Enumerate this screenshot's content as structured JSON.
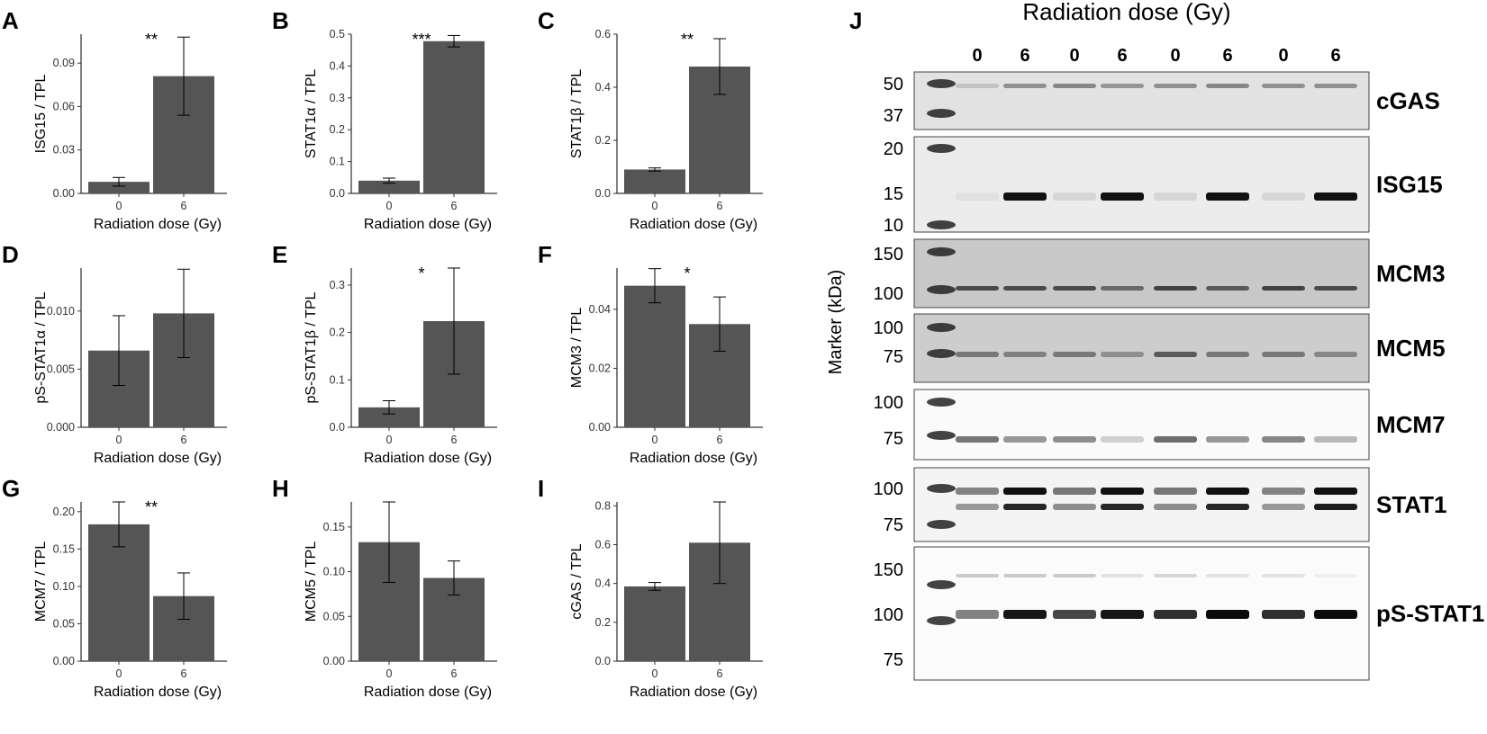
{
  "chart_data": [
    {
      "id": "A",
      "type": "bar",
      "panel_label": "A",
      "categories": [
        "0",
        "6"
      ],
      "values": [
        0.008,
        0.081
      ],
      "error": [
        0.003,
        0.027
      ],
      "ylabel": "ISG15 / TPL",
      "xlabel": "Radiation dose (Gy)",
      "ylim": [
        0,
        0.11
      ],
      "yticks": [
        0.0,
        0.03,
        0.06,
        0.09
      ],
      "ytick_labels": [
        "0.00",
        "0.03",
        "0.06",
        "0.09"
      ],
      "significance": "**",
      "bar_color": "#555555"
    },
    {
      "id": "B",
      "type": "bar",
      "panel_label": "B",
      "categories": [
        "0",
        "6"
      ],
      "values": [
        0.04,
        0.478
      ],
      "error": [
        0.008,
        0.018
      ],
      "ylabel": "STAT1α / TPL",
      "xlabel": "Radiation dose (Gy)",
      "ylim": [
        0,
        0.5
      ],
      "yticks": [
        0.0,
        0.1,
        0.2,
        0.3,
        0.4,
        0.5
      ],
      "ytick_labels": [
        "0.0",
        "0.1",
        "0.2",
        "0.3",
        "0.4",
        "0.5"
      ],
      "significance": "***",
      "bar_color": "#555555"
    },
    {
      "id": "C",
      "type": "bar",
      "panel_label": "C",
      "categories": [
        "0",
        "6"
      ],
      "values": [
        0.09,
        0.478
      ],
      "error": [
        0.006,
        0.105
      ],
      "ylabel": "STAT1β / TPL",
      "xlabel": "Radiation dose (Gy)",
      "ylim": [
        0,
        0.6
      ],
      "yticks": [
        0.0,
        0.2,
        0.4,
        0.6
      ],
      "ytick_labels": [
        "0.0",
        "0.2",
        "0.4",
        "0.6"
      ],
      "significance": "**",
      "bar_color": "#555555"
    },
    {
      "id": "D",
      "type": "bar",
      "panel_label": "D",
      "categories": [
        "0",
        "6"
      ],
      "values": [
        0.0066,
        0.0098
      ],
      "error": [
        0.003,
        0.0038
      ],
      "ylabel": "pS-STAT1α / TPL",
      "xlabel": "Radiation dose (Gy)",
      "ylim": [
        0,
        0.0137
      ],
      "yticks": [
        0.0,
        0.005,
        0.01
      ],
      "ytick_labels": [
        "0.000",
        "0.005",
        "0.010"
      ],
      "significance": "",
      "bar_color": "#555555"
    },
    {
      "id": "E",
      "type": "bar",
      "panel_label": "E",
      "categories": [
        "0",
        "6"
      ],
      "values": [
        0.042,
        0.224
      ],
      "error": [
        0.014,
        0.112
      ],
      "ylabel": "pS-STAT1β / TPL",
      "xlabel": "Radiation dose (Gy)",
      "ylim": [
        0,
        0.336
      ],
      "yticks": [
        0.0,
        0.1,
        0.2,
        0.3
      ],
      "ytick_labels": [
        "0.0",
        "0.1",
        "0.2",
        "0.3"
      ],
      "significance": "*",
      "bar_color": "#555555"
    },
    {
      "id": "F",
      "type": "bar",
      "panel_label": "F",
      "categories": [
        "0",
        "6"
      ],
      "values": [
        0.048,
        0.035
      ],
      "error": [
        0.0058,
        0.0092
      ],
      "ylabel": "MCM3 / TPL",
      "xlabel": "Radiation dose (Gy)",
      "ylim": [
        0,
        0.054
      ],
      "yticks": [
        0.0,
        0.02,
        0.04
      ],
      "ytick_labels": [
        "0.00",
        "0.02",
        "0.04"
      ],
      "significance": "*",
      "bar_color": "#555555"
    },
    {
      "id": "G",
      "type": "bar",
      "panel_label": "G",
      "categories": [
        "0",
        "6"
      ],
      "values": [
        0.183,
        0.087
      ],
      "error": [
        0.03,
        0.031
      ],
      "ylabel": "MCM7 / TPL",
      "xlabel": "Radiation dose (Gy)",
      "ylim": [
        0,
        0.213
      ],
      "yticks": [
        0.0,
        0.05,
        0.1,
        0.15,
        0.2
      ],
      "ytick_labels": [
        "0.00",
        "0.05",
        "0.10",
        "0.15",
        "0.20"
      ],
      "significance": "**",
      "bar_color": "#555555"
    },
    {
      "id": "H",
      "type": "bar",
      "panel_label": "H",
      "categories": [
        "0",
        "6"
      ],
      "values": [
        0.133,
        0.093
      ],
      "error": [
        0.045,
        0.019
      ],
      "ylabel": "MCM5 / TPL",
      "xlabel": "Radiation dose (Gy)",
      "ylim": [
        0,
        0.178
      ],
      "yticks": [
        0.0,
        0.05,
        0.1,
        0.15
      ],
      "ytick_labels": [
        "0.00",
        "0.05",
        "0.10",
        "0.15"
      ],
      "significance": "",
      "bar_color": "#555555"
    },
    {
      "id": "I",
      "type": "bar",
      "panel_label": "I",
      "categories": [
        "0",
        "6"
      ],
      "values": [
        0.385,
        0.61
      ],
      "error": [
        0.02,
        0.21
      ],
      "ylabel": "cGAS / TPL",
      "xlabel": "Radiation dose (Gy)",
      "ylim": [
        0,
        0.82
      ],
      "yticks": [
        0.0,
        0.2,
        0.4,
        0.6,
        0.8
      ],
      "ytick_labels": [
        "0.0",
        "0.2",
        "0.4",
        "0.6",
        "0.8"
      ],
      "significance": "",
      "bar_color": "#555555"
    }
  ],
  "blot": {
    "panel_label": "J",
    "title": "Radiation dose (Gy)",
    "lanes": [
      "0",
      "6",
      "0",
      "6",
      "0",
      "6",
      "0",
      "6"
    ],
    "marker_axis_label": "Marker (kDa)",
    "strips": [
      {
        "id": "cgas",
        "protein": "cGAS",
        "markers": [
          "50",
          "37"
        ],
        "background": "#e2e2e2",
        "band_color": "#4a4a4a"
      },
      {
        "id": "isg15",
        "protein": "ISG15",
        "markers": [
          "20",
          "15",
          "10"
        ],
        "background": "#ececec",
        "band_color": "#111111"
      },
      {
        "id": "mcm3",
        "protein": "MCM3",
        "markers": [
          "150",
          "100"
        ],
        "background": "#c8c8c8",
        "band_color": "#2a2a2a"
      },
      {
        "id": "mcm5",
        "protein": "MCM5",
        "markers": [
          "100",
          "75"
        ],
        "background": "#cdcdcd",
        "band_color": "#333333"
      },
      {
        "id": "mcm7",
        "protein": "MCM7",
        "markers": [
          "100",
          "75"
        ],
        "background": "#fafafa",
        "band_color": "#555555"
      },
      {
        "id": "stat1",
        "protein": "STAT1",
        "markers": [
          "100",
          "75"
        ],
        "background": "#f4f4f4",
        "band_color": "#111111"
      },
      {
        "id": "psstat1",
        "protein": "pS-STAT1",
        "markers": [
          "150",
          "100",
          "75"
        ],
        "background": "#fbfbfb",
        "band_color": "#0a0a0a"
      }
    ]
  }
}
